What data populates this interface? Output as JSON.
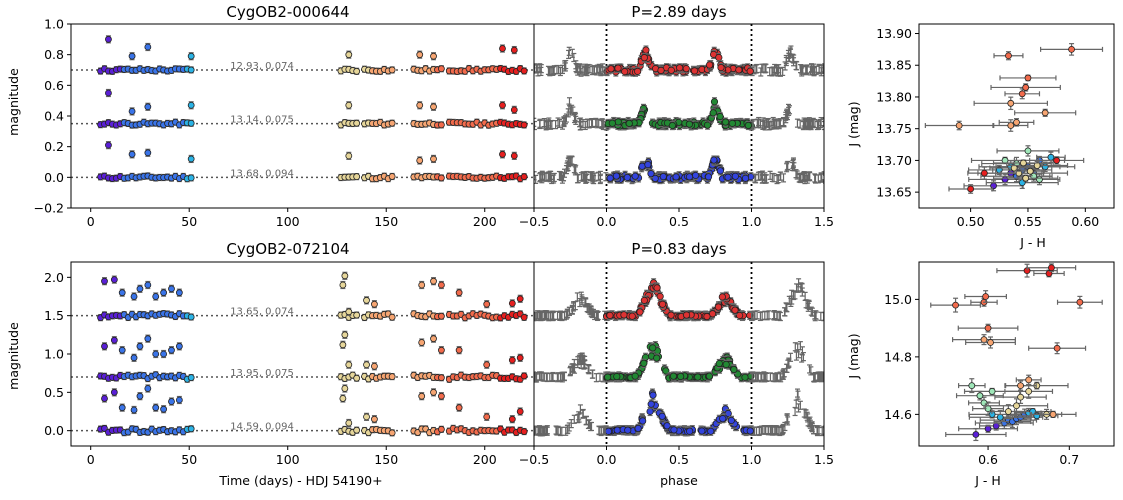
{
  "figure": {
    "colors": {
      "err": "#666666",
      "dot": "#333333",
      "band_j": "#3344dd",
      "band_h": "#228833",
      "band_k": "#dd3333",
      "cmap": [
        "#5a1fd6",
        "#3a74e8",
        "#2bb3e5",
        "#9fe6b8",
        "#e6d69a",
        "#f6a572",
        "#f26b4c",
        "#e61f1f"
      ]
    }
  },
  "chart_data": [
    {
      "id": "lc_top",
      "type": "scatter",
      "title": "CygOB2-000644",
      "xlabel": "",
      "ylabel": "magnitude",
      "xlim": [
        -10,
        225
      ],
      "ylim": [
        1.0,
        -0.2
      ],
      "xticks": [
        "0",
        "50",
        "100",
        "150",
        "200"
      ],
      "xtick_values": [
        0,
        50,
        100,
        150,
        200
      ],
      "yticks": [
        "−0.2",
        "0.0",
        "0.2",
        "0.4",
        "0.6",
        "0.8",
        "1.0"
      ],
      "ytick_values": [
        -0.2,
        0.0,
        0.2,
        0.4,
        0.6,
        0.8,
        1.0
      ],
      "series": [
        {
          "band": "J",
          "offset": 0.0,
          "annotation": "13.68,  0.094"
        },
        {
          "band": "H",
          "offset": 0.35,
          "annotation": "13.14,  0.075"
        },
        {
          "band": "K",
          "offset": 0.7,
          "annotation": "12.93,  0.074"
        }
      ],
      "time_points": [
        5,
        7,
        9,
        11,
        13,
        15,
        17,
        19,
        21,
        23,
        25,
        27,
        29,
        31,
        33,
        35,
        37,
        39,
        41,
        43,
        45,
        47,
        49,
        51,
        127,
        129,
        131,
        133,
        135,
        139,
        141,
        143,
        145,
        147,
        149,
        151,
        153,
        164,
        166,
        168,
        170,
        172,
        174,
        176,
        178,
        182,
        184,
        186,
        188,
        190,
        192,
        194,
        196,
        198,
        200,
        202,
        204,
        206,
        208,
        210,
        212,
        214,
        216,
        218,
        220
      ],
      "dip_points": [
        [
          9,
          0.21
        ],
        [
          9,
          0.55
        ],
        [
          9,
          0.9
        ],
        [
          21,
          0.15
        ],
        [
          21,
          0.43
        ],
        [
          21,
          0.79
        ],
        [
          29,
          0.16
        ],
        [
          29,
          0.46
        ],
        [
          29,
          0.85
        ],
        [
          51,
          0.12
        ],
        [
          51,
          0.47
        ],
        [
          51,
          0.79
        ],
        [
          131,
          0.14
        ],
        [
          131,
          0.47
        ],
        [
          131,
          0.8
        ],
        [
          167,
          0.11
        ],
        [
          167,
          0.47
        ],
        [
          167,
          0.8
        ],
        [
          174,
          0.12
        ],
        [
          174,
          0.46
        ],
        [
          174,
          0.79
        ],
        [
          209,
          0.15
        ],
        [
          209,
          0.47
        ],
        [
          209,
          0.84
        ],
        [
          215,
          0.14
        ],
        [
          215,
          0.44
        ],
        [
          215,
          0.83
        ]
      ]
    },
    {
      "id": "ph_top",
      "type": "scatter",
      "title": "P=2.89 days",
      "xlabel": "",
      "xlim": [
        -0.5,
        1.5
      ],
      "ylim": [
        1.0,
        -0.2
      ],
      "xticks": [
        "−0.5",
        "0.0",
        "0.5",
        "1.0",
        "1.5"
      ],
      "xtick_values": [
        -0.5,
        0.0,
        0.5,
        1.0,
        1.5
      ],
      "vlines": [
        0.0,
        1.0
      ],
      "period_days": 2.89,
      "offsets": [
        0.0,
        0.35,
        0.7
      ],
      "dips": [
        {
          "phase": 0.27,
          "depth": 0.16,
          "width": 0.05
        },
        {
          "phase": 0.75,
          "depth": 0.16,
          "width": 0.05
        }
      ]
    },
    {
      "id": "cmd_top",
      "type": "scatter",
      "title": "",
      "xlabel": "J - H",
      "ylabel": "J (mag)",
      "xlim": [
        0.455,
        0.625
      ],
      "ylim": [
        13.915,
        13.625
      ],
      "xticks": [
        "0.50",
        "0.55",
        "0.60"
      ],
      "xtick_values": [
        0.5,
        0.55,
        0.6
      ],
      "yticks": [
        "13.65",
        "13.70",
        "13.75",
        "13.80",
        "13.85",
        "13.90"
      ],
      "ytick_values": [
        13.65,
        13.7,
        13.75,
        13.8,
        13.85,
        13.9
      ],
      "points": [
        [
          0.52,
          13.66
        ],
        [
          0.53,
          13.67
        ],
        [
          0.535,
          13.68
        ],
        [
          0.54,
          13.675
        ],
        [
          0.545,
          13.685
        ],
        [
          0.55,
          13.69
        ],
        [
          0.555,
          13.68
        ],
        [
          0.56,
          13.7
        ],
        [
          0.545,
          13.665
        ],
        [
          0.535,
          13.69
        ],
        [
          0.525,
          13.685
        ],
        [
          0.565,
          13.69
        ],
        [
          0.57,
          13.705
        ],
        [
          0.55,
          13.715
        ],
        [
          0.56,
          13.67
        ],
        [
          0.54,
          13.695
        ],
        [
          0.53,
          13.7
        ],
        [
          0.555,
          13.675
        ],
        [
          0.548,
          13.672
        ],
        [
          0.542,
          13.68
        ],
        [
          0.538,
          13.688
        ],
        [
          0.552,
          13.683
        ],
        [
          0.558,
          13.692
        ],
        [
          0.546,
          13.696
        ],
        [
          0.49,
          13.755
        ],
        [
          0.535,
          13.755
        ],
        [
          0.54,
          13.76
        ],
        [
          0.565,
          13.775
        ],
        [
          0.535,
          13.79
        ],
        [
          0.545,
          13.805
        ],
        [
          0.548,
          13.815
        ],
        [
          0.55,
          13.83
        ],
        [
          0.533,
          13.865
        ],
        [
          0.588,
          13.875
        ],
        [
          0.5,
          13.655
        ],
        [
          0.512,
          13.68
        ],
        [
          0.575,
          13.7
        ]
      ]
    },
    {
      "id": "lc_bot",
      "type": "scatter",
      "title": "CygOB2-072104",
      "xlabel": "Time (days) - HDJ 54190+",
      "ylabel": "magnitude",
      "xlim": [
        -10,
        225
      ],
      "ylim": [
        2.2,
        -0.2
      ],
      "xticks": [
        "0",
        "50",
        "100",
        "150",
        "200"
      ],
      "xtick_values": [
        0,
        50,
        100,
        150,
        200
      ],
      "yticks": [
        "0.0",
        "0.5",
        "1.0",
        "1.5",
        "2.0"
      ],
      "ytick_values": [
        0.0,
        0.5,
        1.0,
        1.5,
        2.0
      ],
      "series": [
        {
          "band": "J",
          "offset": 0.0,
          "annotation": "14.59,  0.094"
        },
        {
          "band": "H",
          "offset": 0.7,
          "annotation": "13.95,  0.075"
        },
        {
          "band": "K",
          "offset": 1.5,
          "annotation": "13.65,  0.074"
        }
      ],
      "time_points": [
        5,
        7,
        9,
        11,
        13,
        15,
        17,
        19,
        21,
        23,
        25,
        27,
        29,
        31,
        33,
        35,
        37,
        39,
        41,
        43,
        45,
        47,
        49,
        51,
        127,
        129,
        131,
        133,
        135,
        139,
        141,
        143,
        145,
        147,
        149,
        151,
        153,
        164,
        166,
        168,
        170,
        172,
        174,
        176,
        178,
        182,
        184,
        186,
        188,
        190,
        192,
        194,
        196,
        198,
        200,
        202,
        204,
        206,
        208,
        210,
        212,
        214,
        216,
        218,
        220
      ],
      "dip_points": [
        [
          7,
          0.42
        ],
        [
          7,
          1.1
        ],
        [
          7,
          1.95
        ],
        [
          12,
          0.5
        ],
        [
          12,
          1.18
        ],
        [
          12,
          1.97
        ],
        [
          16,
          0.3
        ],
        [
          16,
          1.05
        ],
        [
          16,
          1.8
        ],
        [
          22,
          0.27
        ],
        [
          22,
          0.95
        ],
        [
          22,
          1.75
        ],
        [
          25,
          0.45
        ],
        [
          25,
          1.1
        ],
        [
          25,
          1.85
        ],
        [
          29,
          0.55
        ],
        [
          29,
          1.2
        ],
        [
          29,
          1.9
        ],
        [
          33,
          0.3
        ],
        [
          33,
          1.0
        ],
        [
          33,
          1.75
        ],
        [
          37,
          0.28
        ],
        [
          37,
          1.0
        ],
        [
          37,
          1.8
        ],
        [
          41,
          0.38
        ],
        [
          41,
          1.05
        ],
        [
          41,
          1.85
        ],
        [
          45,
          0.4
        ],
        [
          45,
          1.1
        ],
        [
          45,
          1.8
        ],
        [
          128,
          0.42
        ],
        [
          128,
          1.12
        ],
        [
          128,
          1.9
        ],
        [
          129,
          0.55
        ],
        [
          129,
          1.25
        ],
        [
          129,
          2.02
        ],
        [
          131,
          0.1
        ],
        [
          131,
          0.86
        ],
        [
          131,
          1.55
        ],
        [
          140,
          0.18
        ],
        [
          140,
          0.86
        ],
        [
          140,
          1.7
        ],
        [
          144,
          0.15
        ],
        [
          144,
          0.84
        ],
        [
          144,
          1.65
        ],
        [
          168,
          0.45
        ],
        [
          168,
          1.15
        ],
        [
          168,
          1.9
        ],
        [
          174,
          0.5
        ],
        [
          174,
          1.2
        ],
        [
          174,
          1.95
        ],
        [
          178,
          0.45
        ],
        [
          178,
          1.05
        ],
        [
          178,
          1.9
        ],
        [
          187,
          0.3
        ],
        [
          187,
          1.05
        ],
        [
          187,
          1.8
        ],
        [
          201,
          0.18
        ],
        [
          201,
          0.86
        ],
        [
          201,
          1.65
        ],
        [
          214,
          0.15
        ],
        [
          214,
          0.92
        ],
        [
          214,
          1.66
        ],
        [
          218,
          0.25
        ],
        [
          218,
          0.95
        ],
        [
          218,
          1.72
        ]
      ]
    },
    {
      "id": "ph_bot",
      "type": "scatter",
      "title": "P=0.83 days",
      "xlabel": "phase",
      "xlim": [
        -0.5,
        1.5
      ],
      "ylim": [
        2.2,
        -0.2
      ],
      "xticks": [
        "−0.5",
        "0.0",
        "0.5",
        "1.0",
        "1.5"
      ],
      "xtick_values": [
        -0.5,
        0.0,
        0.5,
        1.0,
        1.5
      ],
      "vlines": [
        0.0,
        1.0
      ],
      "period_days": 0.83,
      "offsets": [
        0.0,
        0.7,
        1.5
      ],
      "dips": [
        {
          "phase": 0.32,
          "depth": 0.5,
          "width": 0.11
        },
        {
          "phase": 0.82,
          "depth": 0.3,
          "width": 0.1
        }
      ]
    },
    {
      "id": "cmd_bot",
      "type": "scatter",
      "title": "",
      "xlabel": "J - H",
      "ylabel": "J (mag)",
      "xlim": [
        0.515,
        0.755
      ],
      "ylim": [
        15.13,
        14.49
      ],
      "xticks": [
        "0.6",
        "0.7"
      ],
      "xtick_values": [
        0.6,
        0.7
      ],
      "yticks": [
        "14.6",
        "14.8",
        "15.0"
      ],
      "ytick_values": [
        14.6,
        14.8,
        15.0
      ],
      "points": [
        [
          0.585,
          14.53
        ],
        [
          0.6,
          14.55
        ],
        [
          0.61,
          14.56
        ],
        [
          0.62,
          14.57
        ],
        [
          0.625,
          14.58
        ],
        [
          0.63,
          14.575
        ],
        [
          0.635,
          14.585
        ],
        [
          0.64,
          14.59
        ],
        [
          0.645,
          14.6
        ],
        [
          0.65,
          14.605
        ],
        [
          0.655,
          14.61
        ],
        [
          0.66,
          14.595
        ],
        [
          0.615,
          14.59
        ],
        [
          0.605,
          14.6
        ],
        [
          0.6,
          14.62
        ],
        [
          0.595,
          14.64
        ],
        [
          0.59,
          14.665
        ],
        [
          0.605,
          14.68
        ],
        [
          0.58,
          14.7
        ],
        [
          0.64,
          14.66
        ],
        [
          0.65,
          14.68
        ],
        [
          0.66,
          14.7
        ],
        [
          0.625,
          14.61
        ],
        [
          0.635,
          14.63
        ],
        [
          0.672,
          14.6
        ],
        [
          0.68,
          14.6
        ],
        [
          0.64,
          14.7
        ],
        [
          0.65,
          14.72
        ],
        [
          0.595,
          14.86
        ],
        [
          0.603,
          14.85
        ],
        [
          0.6,
          14.9
        ],
        [
          0.685,
          14.83
        ],
        [
          0.56,
          14.98
        ],
        [
          0.595,
          14.99
        ],
        [
          0.597,
          15.01
        ],
        [
          0.713,
          14.99
        ],
        [
          0.648,
          15.1
        ],
        [
          0.675,
          15.09
        ],
        [
          0.678,
          15.11
        ]
      ]
    }
  ]
}
